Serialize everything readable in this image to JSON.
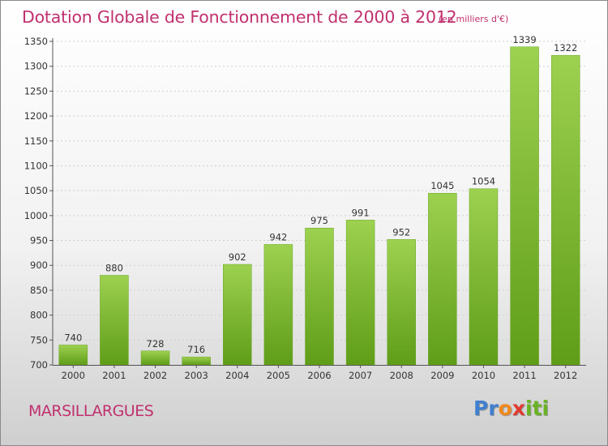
{
  "header": {
    "title": "Dotation Globale de Fonctionnement de 2000 à 2012",
    "unit_note": "(en milliers d'€)"
  },
  "commune": "MARSILLARGUES",
  "logo": {
    "text": "Proxiti",
    "colors": [
      "#3f7fd0",
      "#f08a1e",
      "#e23a2e",
      "#69b324"
    ]
  },
  "chart_data": {
    "type": "bar",
    "title": "Dotation Globale de Fonctionnement de 2000 à 2012",
    "subtitle": "(en milliers d'€)",
    "categories": [
      "2000",
      "2001",
      "2002",
      "2003",
      "2004",
      "2005",
      "2006",
      "2007",
      "2008",
      "2009",
      "2010",
      "2011",
      "2012"
    ],
    "values": [
      740,
      880,
      728,
      716,
      902,
      942,
      975,
      991,
      952,
      1045,
      1054,
      1339,
      1322
    ],
    "ylim": [
      700,
      1350
    ],
    "yticks": [
      700,
      750,
      800,
      850,
      900,
      950,
      1000,
      1050,
      1100,
      1150,
      1200,
      1250,
      1300,
      1350
    ],
    "grid": true,
    "bar_color": "#7dbb32",
    "text_color": "#c0306e"
  }
}
